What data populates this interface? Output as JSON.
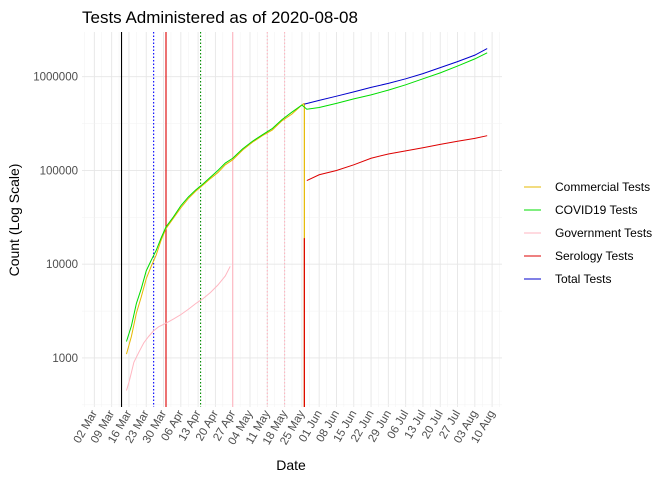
{
  "chart_data": {
    "type": "line",
    "title": "Tests Administered as of 2020-08-08",
    "xlabel": "Date",
    "ylabel": "Count (Log Scale)",
    "y_scale": "log10",
    "ylim": [
      300,
      3000000
    ],
    "xlim": [
      "2020-02-26",
      "2020-08-14"
    ],
    "grid": true,
    "legend_position": "right",
    "x_ticks": [
      "02 Mar",
      "09 Mar",
      "16 Mar",
      "23 Mar",
      "30 Mar",
      "06 Apr",
      "13 Apr",
      "20 Apr",
      "27 Apr",
      "04 May",
      "11 May",
      "18 May",
      "25 May",
      "01 Jun",
      "08 Jun",
      "15 Jun",
      "22 Jun",
      "29 Jun",
      "06 Jul",
      "13 Jul",
      "20 Jul",
      "27 Jul",
      "03 Aug",
      "10 Aug"
    ],
    "x_tick_dates": [
      "2020-03-02",
      "2020-03-09",
      "2020-03-16",
      "2020-03-23",
      "2020-03-30",
      "2020-04-06",
      "2020-04-13",
      "2020-04-20",
      "2020-04-27",
      "2020-05-04",
      "2020-05-11",
      "2020-05-18",
      "2020-05-25",
      "2020-06-01",
      "2020-06-08",
      "2020-06-15",
      "2020-06-22",
      "2020-06-29",
      "2020-07-06",
      "2020-07-13",
      "2020-07-20",
      "2020-07-27",
      "2020-08-03",
      "2020-08-10"
    ],
    "y_ticks": [
      1000,
      10000,
      100000,
      1000000
    ],
    "y_tick_labels": [
      "1000",
      "10000",
      "100000",
      "1000000"
    ],
    "series": [
      {
        "name": "Commercial Tests",
        "color": "#E6B800",
        "points": [
          [
            "2020-03-15",
            1100
          ],
          [
            "2020-03-17",
            1700
          ],
          [
            "2020-03-19",
            3000
          ],
          [
            "2020-03-21",
            4500
          ],
          [
            "2020-03-23",
            7000
          ],
          [
            "2020-03-25",
            9500
          ],
          [
            "2020-03-27",
            12500
          ],
          [
            "2020-03-29",
            18000
          ],
          [
            "2020-03-31",
            24000
          ],
          [
            "2020-04-03",
            31000
          ],
          [
            "2020-04-06",
            40000
          ],
          [
            "2020-04-09",
            50000
          ],
          [
            "2020-04-12",
            60000
          ],
          [
            "2020-04-15",
            70000
          ],
          [
            "2020-04-18",
            82000
          ],
          [
            "2020-04-21",
            95000
          ],
          [
            "2020-04-24",
            115000
          ],
          [
            "2020-04-27",
            130000
          ],
          [
            "2020-05-01",
            165000
          ],
          [
            "2020-05-05",
            200000
          ],
          [
            "2020-05-09",
            235000
          ],
          [
            "2020-05-13",
            270000
          ],
          [
            "2020-05-17",
            340000
          ],
          [
            "2020-05-21",
            400000
          ],
          [
            "2020-05-25",
            500000
          ],
          [
            "2020-05-26",
            520000
          ]
        ],
        "spike": {
          "date": "2020-05-26",
          "from": 300,
          "to": 520000
        }
      },
      {
        "name": "COVID19 Tests",
        "color": "#00DD00",
        "points": [
          [
            "2020-03-15",
            1500
          ],
          [
            "2020-03-17",
            2200
          ],
          [
            "2020-03-19",
            3800
          ],
          [
            "2020-03-21",
            5500
          ],
          [
            "2020-03-23",
            8500
          ],
          [
            "2020-03-25",
            11000
          ],
          [
            "2020-03-27",
            14000
          ],
          [
            "2020-03-29",
            19000
          ],
          [
            "2020-03-31",
            25000
          ],
          [
            "2020-04-03",
            32000
          ],
          [
            "2020-04-06",
            42000
          ],
          [
            "2020-04-09",
            52000
          ],
          [
            "2020-04-12",
            62000
          ],
          [
            "2020-04-15",
            72000
          ],
          [
            "2020-04-18",
            85000
          ],
          [
            "2020-04-21",
            100000
          ],
          [
            "2020-04-24",
            120000
          ],
          [
            "2020-04-27",
            135000
          ],
          [
            "2020-05-01",
            170000
          ],
          [
            "2020-05-05",
            205000
          ],
          [
            "2020-05-09",
            240000
          ],
          [
            "2020-05-13",
            280000
          ],
          [
            "2020-05-17",
            350000
          ],
          [
            "2020-05-21",
            420000
          ],
          [
            "2020-05-25",
            500000
          ],
          [
            "2020-05-27",
            450000
          ],
          [
            "2020-06-01",
            470000
          ],
          [
            "2020-06-08",
            520000
          ],
          [
            "2020-06-15",
            580000
          ],
          [
            "2020-06-22",
            640000
          ],
          [
            "2020-06-29",
            720000
          ],
          [
            "2020-07-06",
            820000
          ],
          [
            "2020-07-13",
            950000
          ],
          [
            "2020-07-20",
            1100000
          ],
          [
            "2020-07-27",
            1300000
          ],
          [
            "2020-08-03",
            1550000
          ],
          [
            "2020-08-08",
            1800000
          ]
        ]
      },
      {
        "name": "Government Tests",
        "color": "#FFB6C1",
        "points": [
          [
            "2020-03-15",
            450
          ],
          [
            "2020-03-16",
            550
          ],
          [
            "2020-03-17",
            700
          ],
          [
            "2020-03-18",
            900
          ],
          [
            "2020-03-20",
            1150
          ],
          [
            "2020-03-22",
            1450
          ],
          [
            "2020-03-24",
            1700
          ],
          [
            "2020-03-26",
            1950
          ],
          [
            "2020-03-28",
            2150
          ],
          [
            "2020-03-31",
            2350
          ],
          [
            "2020-04-03",
            2600
          ],
          [
            "2020-04-06",
            2900
          ],
          [
            "2020-04-09",
            3300
          ],
          [
            "2020-04-12",
            3800
          ],
          [
            "2020-04-15",
            4300
          ],
          [
            "2020-04-18",
            5000
          ],
          [
            "2020-04-21",
            6000
          ],
          [
            "2020-04-24",
            7500
          ],
          [
            "2020-04-26",
            9500
          ]
        ]
      },
      {
        "name": "Serology Tests",
        "color": "#DD0000",
        "points": [
          [
            "2020-05-27",
            78000
          ],
          [
            "2020-06-01",
            90000
          ],
          [
            "2020-06-08",
            100000
          ],
          [
            "2020-06-15",
            115000
          ],
          [
            "2020-06-22",
            135000
          ],
          [
            "2020-06-29",
            150000
          ],
          [
            "2020-07-06",
            162000
          ],
          [
            "2020-07-13",
            175000
          ],
          [
            "2020-07-20",
            190000
          ],
          [
            "2020-07-27",
            205000
          ],
          [
            "2020-08-03",
            220000
          ],
          [
            "2020-08-08",
            235000
          ]
        ],
        "spike": {
          "date": "2020-05-26",
          "from": 300,
          "to": 19000
        }
      },
      {
        "name": "Total Tests",
        "color": "#0000CC",
        "points": [
          [
            "2020-05-26",
            510000
          ],
          [
            "2020-06-01",
            560000
          ],
          [
            "2020-06-08",
            620000
          ],
          [
            "2020-06-15",
            690000
          ],
          [
            "2020-06-22",
            770000
          ],
          [
            "2020-06-29",
            850000
          ],
          [
            "2020-07-06",
            950000
          ],
          [
            "2020-07-13",
            1080000
          ],
          [
            "2020-07-20",
            1250000
          ],
          [
            "2020-07-27",
            1450000
          ],
          [
            "2020-08-03",
            1700000
          ],
          [
            "2020-08-08",
            2000000
          ]
        ]
      }
    ],
    "vertical_markers": [
      {
        "date": "2020-03-13",
        "color": "#000000",
        "style": "solid"
      },
      {
        "date": "2020-03-26",
        "color": "#0000FF",
        "style": "dotted"
      },
      {
        "date": "2020-03-31",
        "color": "#DD0000",
        "style": "solid"
      },
      {
        "date": "2020-04-14",
        "color": "#008B00",
        "style": "dotted"
      },
      {
        "date": "2020-04-27",
        "color": "#FFB6C1",
        "style": "solid"
      },
      {
        "date": "2020-05-11",
        "color": "#FFB6C1",
        "style": "dotted"
      },
      {
        "date": "2020-05-18",
        "color": "#FFB6C1",
        "style": "dotted"
      }
    ]
  }
}
